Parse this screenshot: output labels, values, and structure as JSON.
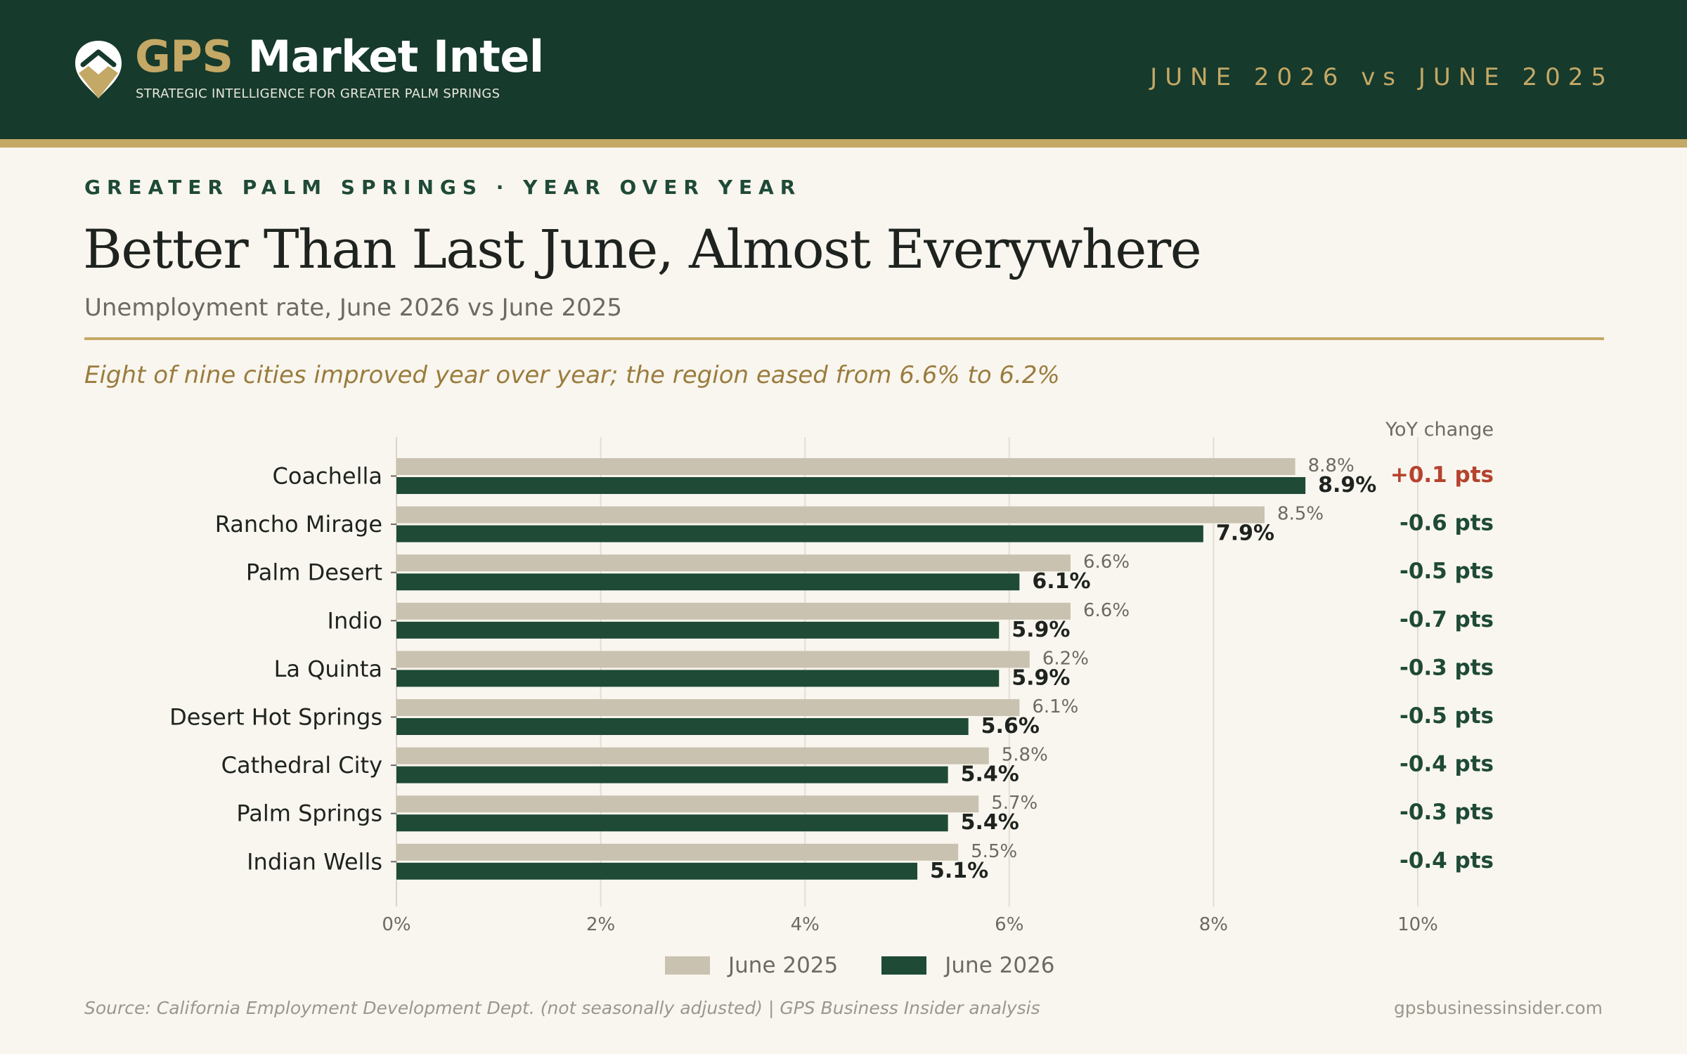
{
  "header": {
    "brand_accent": "GPS",
    "brand_rest": " Market Intel",
    "tagline": "STRATEGIC INTELLIGENCE FOR GREATER PALM SPRINGS",
    "period": "JUNE 2026 vs JUNE 2025"
  },
  "kicker": "GREATER PALM SPRINGS · YEAR OVER YEAR",
  "title": "Better Than Last June, Almost Everywhere",
  "subtitle": "Unemployment rate, June 2026 vs June 2025",
  "insight": "Eight of nine cities improved year over year; the region eased from 6.6% to 6.2%",
  "chart_data": {
    "type": "bar",
    "orientation": "horizontal",
    "categories": [
      "Coachella",
      "Rancho Mirage",
      "Palm Desert",
      "Indio",
      "La Quinta",
      "Desert Hot Springs",
      "Cathedral City",
      "Palm Springs",
      "Indian Wells"
    ],
    "series": [
      {
        "name": "June 2025",
        "color": "#c9c2b0",
        "values": [
          8.8,
          8.5,
          6.6,
          6.6,
          6.2,
          6.1,
          5.8,
          5.7,
          5.5
        ],
        "labels": [
          "8.8%",
          "8.5%",
          "6.6%",
          "6.6%",
          "6.2%",
          "6.1%",
          "5.8%",
          "5.7%",
          "5.5%"
        ]
      },
      {
        "name": "June 2026",
        "color": "#1e4a36",
        "values": [
          8.9,
          7.9,
          6.1,
          5.9,
          5.9,
          5.6,
          5.4,
          5.4,
          5.1
        ],
        "labels": [
          "8.9%",
          "7.9%",
          "6.1%",
          "5.9%",
          "5.9%",
          "5.6%",
          "5.4%",
          "5.4%",
          "5.1%"
        ]
      }
    ],
    "change_header": "YoY change",
    "changes": [
      "+0.1 pts",
      "-0.6 pts",
      "-0.5 pts",
      "-0.7 pts",
      "-0.3 pts",
      "-0.5 pts",
      "-0.4 pts",
      "-0.3 pts",
      "-0.4 pts"
    ],
    "change_colors": {
      "up": "#b5432e",
      "down": "#1e4a36"
    },
    "xlim": [
      0,
      10
    ],
    "xticks": [
      0,
      2,
      4,
      6,
      8,
      10
    ],
    "xtick_labels": [
      "0%",
      "2%",
      "4%",
      "6%",
      "8%",
      "10%"
    ],
    "grid": true,
    "legend": "bottom-center"
  },
  "legend": {
    "items": [
      {
        "label": "June 2025",
        "color": "#c9c2b0"
      },
      {
        "label": "June 2026",
        "color": "#1e4a36"
      }
    ]
  },
  "footer": {
    "source": "Source: California Employment Development Dept. (not seasonally adjusted)  |  GPS Business Insider analysis",
    "site": "gpsbusinessinsider.com"
  }
}
